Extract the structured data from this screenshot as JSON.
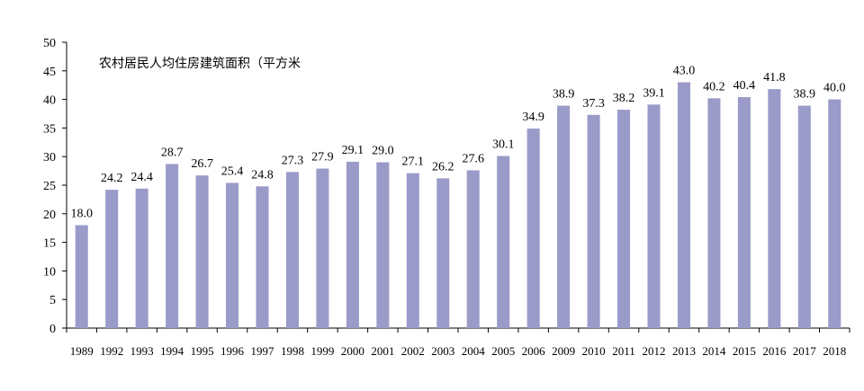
{
  "chart_data": {
    "type": "bar",
    "title": "农村居民人均住房建筑面积（平方米",
    "xlabel": "",
    "ylabel": "",
    "ylim": [
      0,
      50
    ],
    "yticks": [
      0,
      5,
      10,
      15,
      20,
      25,
      30,
      35,
      40,
      45,
      50
    ],
    "grid": false,
    "bar_color": "#9b9bc9",
    "categories": [
      "1989",
      "1992",
      "1993",
      "1994",
      "1995",
      "1996",
      "1997",
      "1998",
      "1999",
      "2000",
      "2001",
      "2002",
      "2003",
      "2004",
      "2005",
      "2006",
      "2009",
      "2010",
      "2011",
      "2012",
      "2013",
      "2014",
      "2015",
      "2016",
      "2017",
      "2018"
    ],
    "values": [
      18.0,
      24.2,
      24.4,
      28.7,
      26.7,
      25.4,
      24.8,
      27.3,
      27.9,
      29.1,
      29.0,
      27.1,
      26.2,
      27.6,
      30.1,
      34.9,
      38.9,
      37.3,
      38.2,
      39.1,
      43.0,
      40.2,
      40.4,
      41.8,
      38.9,
      40.0
    ],
    "data_labels": [
      "18.0",
      "24.2",
      "24.4",
      "28.7",
      "26.7",
      "25.4",
      "24.8",
      "27.3",
      "27.9",
      "29.1",
      "29.0",
      "27.1",
      "26.2",
      "27.6",
      "30.1",
      "34.9",
      "38.9",
      "37.3",
      "38.2",
      "39.1",
      "43.0",
      "40.2",
      "40.4",
      "41.8",
      "38.9",
      "40.0"
    ]
  }
}
